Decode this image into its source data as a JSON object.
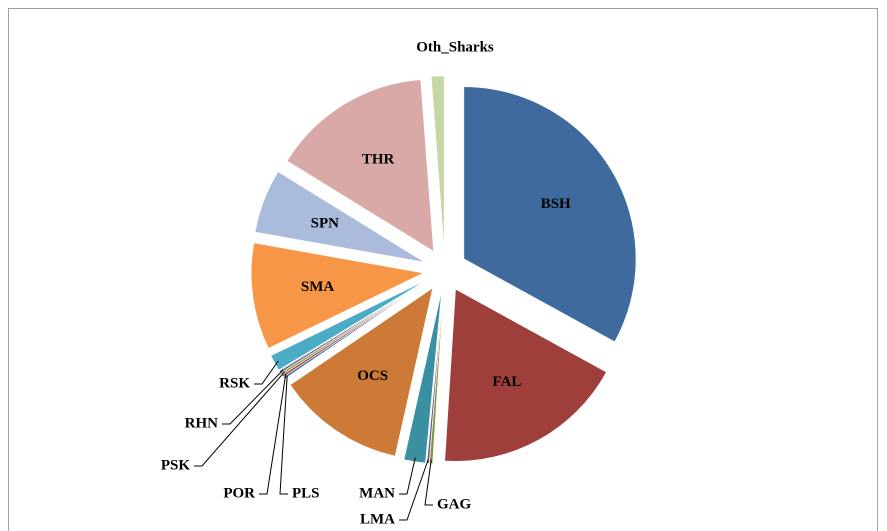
{
  "chart_data": {
    "type": "pie",
    "categories": [
      "BSH",
      "FAL",
      "GAG",
      "LMA",
      "MAN",
      "OCS",
      "PLS",
      "POR",
      "PSK",
      "RHN",
      "RSK",
      "SMA",
      "SPN",
      "THR",
      "Oth_Sharks"
    ],
    "values": [
      33,
      18,
      0.3,
      0.2,
      2,
      12,
      0.2,
      0.2,
      0.2,
      0.2,
      1.5,
      10,
      6,
      15,
      1.2
    ],
    "colors": [
      "#3f6a9e",
      "#9e3f3c",
      "#7f9a47",
      "#6a548a",
      "#3a8fa1",
      "#cc7a36",
      "#4a72a8",
      "#a84a47",
      "#8aa656",
      "#7b62a0",
      "#4bacc6",
      "#f79646",
      "#aabbdb",
      "#d9a9a8",
      "#c4d7a5"
    ]
  }
}
